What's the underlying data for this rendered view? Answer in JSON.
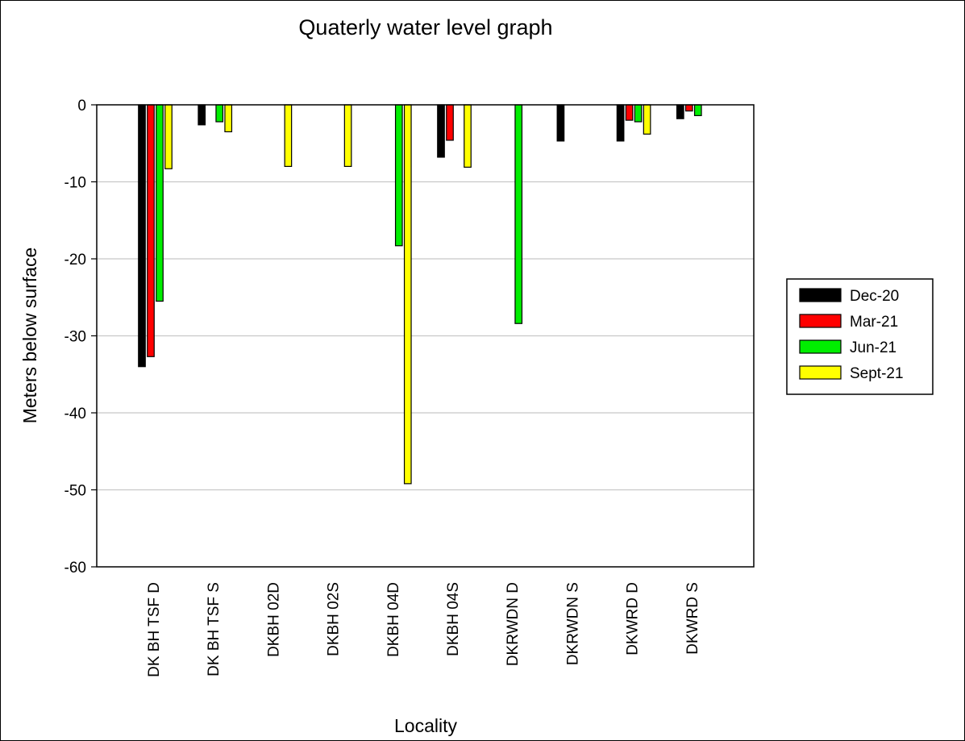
{
  "chart_data": {
    "type": "bar",
    "title": "Quaterly water level graph",
    "xlabel": "Locality",
    "ylabel": "Meters below surface",
    "ylim": [
      -60,
      0
    ],
    "yticks": [
      0,
      -10,
      -20,
      -30,
      -40,
      -50,
      -60
    ],
    "grid": true,
    "legend_position": "right",
    "categories": [
      "DK BH TSF D",
      "DK BH TSF S",
      "DKBH 02D",
      "DKBH 02S",
      "DKBH 04D",
      "DKBH 04S",
      "DKRWDN D",
      "DKRWDN S",
      "DKWRD D",
      "DKWRD S"
    ],
    "series": [
      {
        "name": "Dec-20",
        "color": "#000000",
        "values": [
          -34.0,
          -2.6,
          null,
          null,
          null,
          -6.8,
          null,
          -4.7,
          -4.7,
          -1.8
        ]
      },
      {
        "name": "Mar-21",
        "color": "#ff0000",
        "values": [
          -32.7,
          null,
          null,
          null,
          null,
          -4.6,
          null,
          null,
          -2.0,
          -0.8
        ]
      },
      {
        "name": "Jun-21",
        "color": "#00ee00",
        "values": [
          -25.5,
          -2.2,
          null,
          null,
          -18.3,
          null,
          -28.4,
          null,
          -2.2,
          -1.4
        ]
      },
      {
        "name": "Sept-21",
        "color": "#ffff00",
        "values": [
          -8.3,
          -3.5,
          -8.0,
          -8.0,
          -49.2,
          -8.1,
          null,
          null,
          -3.8,
          null
        ]
      }
    ]
  }
}
